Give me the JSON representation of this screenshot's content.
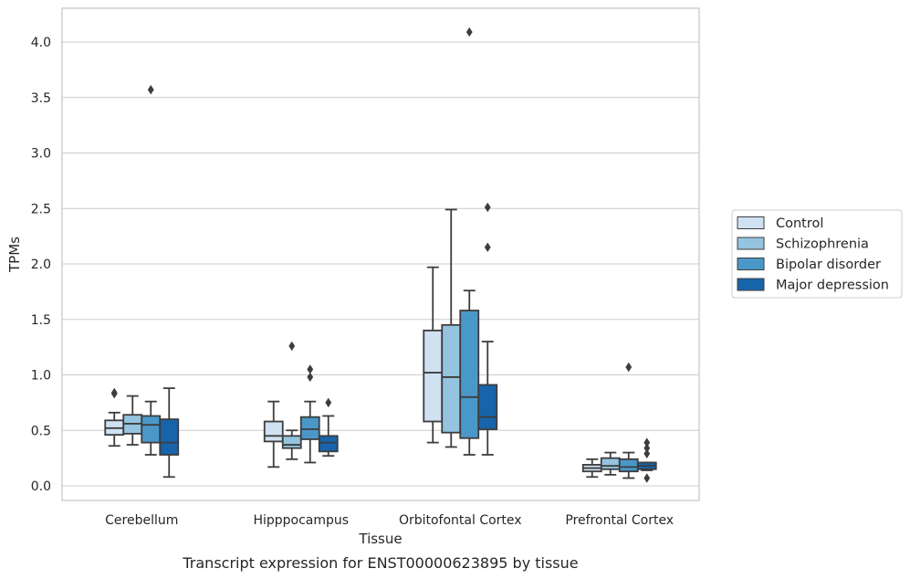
{
  "chart_data": {
    "type": "boxplot",
    "xlabel": "Tissue",
    "ylabel": "TPMs",
    "caption": "Transcript expression for ENST00000623895 by tissue",
    "categories": [
      "Cerebellum",
      "Hipppocampus",
      "Orbitofontal Cortex",
      "Prefrontal Cortex"
    ],
    "ylim": [
      -0.12,
      4.3
    ],
    "yticks": [
      "0.0",
      "0.5",
      "1.0",
      "1.5",
      "2.0",
      "2.5",
      "3.0",
      "3.5",
      "4.0"
    ],
    "grid": "horizontal",
    "legend_position": "right",
    "series": [
      {
        "name": "Control",
        "color": "#d0e1f2",
        "boxes": [
          {
            "whislo": 0.36,
            "q1": 0.46,
            "med": 0.52,
            "q3": 0.59,
            "whishi": 0.66,
            "fliers": [
              0.83,
              0.84
            ]
          },
          {
            "whislo": 0.17,
            "q1": 0.4,
            "med": 0.45,
            "q3": 0.58,
            "whishi": 0.76,
            "fliers": []
          },
          {
            "whislo": 0.39,
            "q1": 0.58,
            "med": 1.02,
            "q3": 1.4,
            "whishi": 1.97,
            "fliers": []
          },
          {
            "whislo": 0.08,
            "q1": 0.13,
            "med": 0.16,
            "q3": 0.19,
            "whishi": 0.24,
            "fliers": []
          }
        ]
      },
      {
        "name": "Schizophrenia",
        "color": "#94c4df",
        "boxes": [
          {
            "whislo": 0.37,
            "q1": 0.47,
            "med": 0.56,
            "q3": 0.64,
            "whishi": 0.81,
            "fliers": []
          },
          {
            "whislo": 0.24,
            "q1": 0.34,
            "med": 0.37,
            "q3": 0.45,
            "whishi": 0.5,
            "fliers": [
              1.26
            ]
          },
          {
            "whislo": 0.35,
            "q1": 0.48,
            "med": 0.98,
            "q3": 1.45,
            "whishi": 2.49,
            "fliers": []
          },
          {
            "whislo": 0.1,
            "q1": 0.15,
            "med": 0.18,
            "q3": 0.25,
            "whishi": 0.3,
            "fliers": []
          }
        ]
      },
      {
        "name": "Bipolar disorder",
        "color": "#4a98c9",
        "boxes": [
          {
            "whislo": 0.28,
            "q1": 0.39,
            "med": 0.55,
            "q3": 0.63,
            "whishi": 0.76,
            "fliers": [
              3.57
            ]
          },
          {
            "whislo": 0.21,
            "q1": 0.42,
            "med": 0.51,
            "q3": 0.62,
            "whishi": 0.76,
            "fliers": [
              0.98,
              1.05
            ]
          },
          {
            "whislo": 0.28,
            "q1": 0.43,
            "med": 0.8,
            "q3": 1.58,
            "whishi": 1.76,
            "fliers": [
              4.09
            ]
          },
          {
            "whislo": 0.07,
            "q1": 0.13,
            "med": 0.17,
            "q3": 0.24,
            "whishi": 0.3,
            "fliers": [
              1.07
            ]
          }
        ]
      },
      {
        "name": "Major depression",
        "color": "#1764ab",
        "boxes": [
          {
            "whislo": 0.08,
            "q1": 0.28,
            "med": 0.39,
            "q3": 0.6,
            "whishi": 0.88,
            "fliers": []
          },
          {
            "whislo": 0.27,
            "q1": 0.31,
            "med": 0.39,
            "q3": 0.45,
            "whishi": 0.63,
            "fliers": [
              0.75
            ]
          },
          {
            "whislo": 0.28,
            "q1": 0.51,
            "med": 0.62,
            "q3": 0.91,
            "whishi": 1.3,
            "fliers": [
              2.15,
              2.51
            ]
          },
          {
            "whislo": 0.14,
            "q1": 0.15,
            "med": 0.18,
            "q3": 0.21,
            "whishi": 0.21,
            "fliers": [
              0.07,
              0.29,
              0.34,
              0.39
            ]
          }
        ]
      }
    ]
  }
}
